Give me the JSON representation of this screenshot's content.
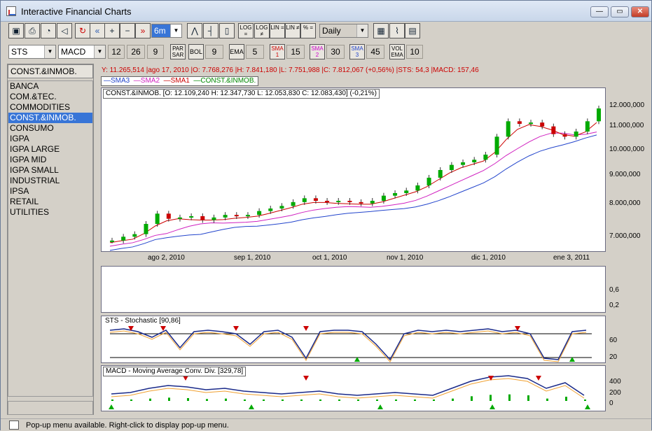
{
  "window": {
    "title": "Interactive Financial Charts",
    "min": "—",
    "max": "▭",
    "close": "✕"
  },
  "toolbar1": {
    "interval": "6m",
    "period": "Daily",
    "zoom_in": "+",
    "zoom_out": "−",
    "back": "«",
    "forward": "»"
  },
  "toolbar1_labels": {
    "log_eq": "LOG =",
    "log_neq": "LOG ≠",
    "lin_eq": "LIN =",
    "lin_neq": "LIN ≠",
    "pct": "% ="
  },
  "toolbar2": {
    "symbol": "STS",
    "indicator": "MACD",
    "macd_fast": "12",
    "macd_slow": "26",
    "macd_signal": "9",
    "parsar": "PAR SAR",
    "bol": "BOL",
    "bol_val": "9",
    "ema": "EMA",
    "ema_val": "5",
    "sma1": "SMA 1",
    "sma1_val": "15",
    "sma2": "SMA 2",
    "sma2_val": "30",
    "sma3": "SMA 3",
    "sma3_val": "45",
    "volema": "VOL EMA",
    "volema_val": "10"
  },
  "sidebar": {
    "selected": "CONST.&INMOB.",
    "items": [
      "BANCA",
      "COM.&TEC.",
      "COMMODITIES",
      "CONST.&INMOB.",
      "CONSUMO",
      "IGPA",
      "IGPA LARGE",
      "IGPA MID",
      "IGPA SMALL",
      "INDUSTRIAL",
      "IPSA",
      "RETAIL",
      "UTILITIES"
    ]
  },
  "info_line": "Y: 11.265,514 |ago 17, 2010 |O: 7.768,276 |H: 7.841,180 |L: 7.751,988 |C: 7.812,067 (+0,56%) |STS: 54,3 |MACD: 157,46",
  "legend": {
    "sma3": "SMA3",
    "sma2": "SMA2",
    "sma1": "SMA1",
    "main": "CONST.&INMOB.",
    "colors": {
      "sma3": "#2244cc",
      "sma2": "#d020c0",
      "sma1": "#cc0000",
      "main": "#008800"
    }
  },
  "ohlc_label": "CONST.&INMOB. [O: 12.109,240  H: 12.347,730  L: 12.053,830  C: 12.083,430] (-0,21%)",
  "price_axis": [
    "12.000,000",
    "11.000,000",
    "10.000,000",
    "9.000,000",
    "8.000,000",
    "7.000,000"
  ],
  "date_axis": [
    "ago 2, 2010",
    "sep 1, 2010",
    "oct 1, 2010",
    "nov 1, 2010",
    "dic 1, 2010",
    "ene 3, 2011"
  ],
  "volume_axis": [
    "0,6",
    "0,2"
  ],
  "sts": {
    "title": "STS - Stochastic [90,86]",
    "axis": [
      "60",
      "20"
    ]
  },
  "macd": {
    "title": "MACD - Moving Average Conv. Div. [329,78]",
    "axis": [
      "400",
      "200",
      "0"
    ]
  },
  "chart_data": {
    "type": "line",
    "series": [
      {
        "name": "CONST.&INMOB.",
        "values": [
          6950000,
          7100000,
          7200000,
          7600000,
          8000000,
          7800000,
          7850000,
          7900000,
          7750000,
          7850000,
          7950000,
          7900000,
          7950000,
          8100000,
          8200000,
          8300000,
          8450000,
          8600000,
          8500000,
          8450000,
          8500000,
          8450000,
          8400000,
          8500000,
          8700000,
          8800000,
          8900000,
          9100000,
          9400000,
          9700000,
          9900000,
          10000000,
          10100000,
          10300000,
          11000000,
          11600000,
          11500000,
          11550000,
          11400000,
          11100000,
          11000000,
          11200000,
          11600000,
          12100000
        ]
      }
    ]
  },
  "status": "Pop-up menu available. Right-click to display pop-up menu."
}
